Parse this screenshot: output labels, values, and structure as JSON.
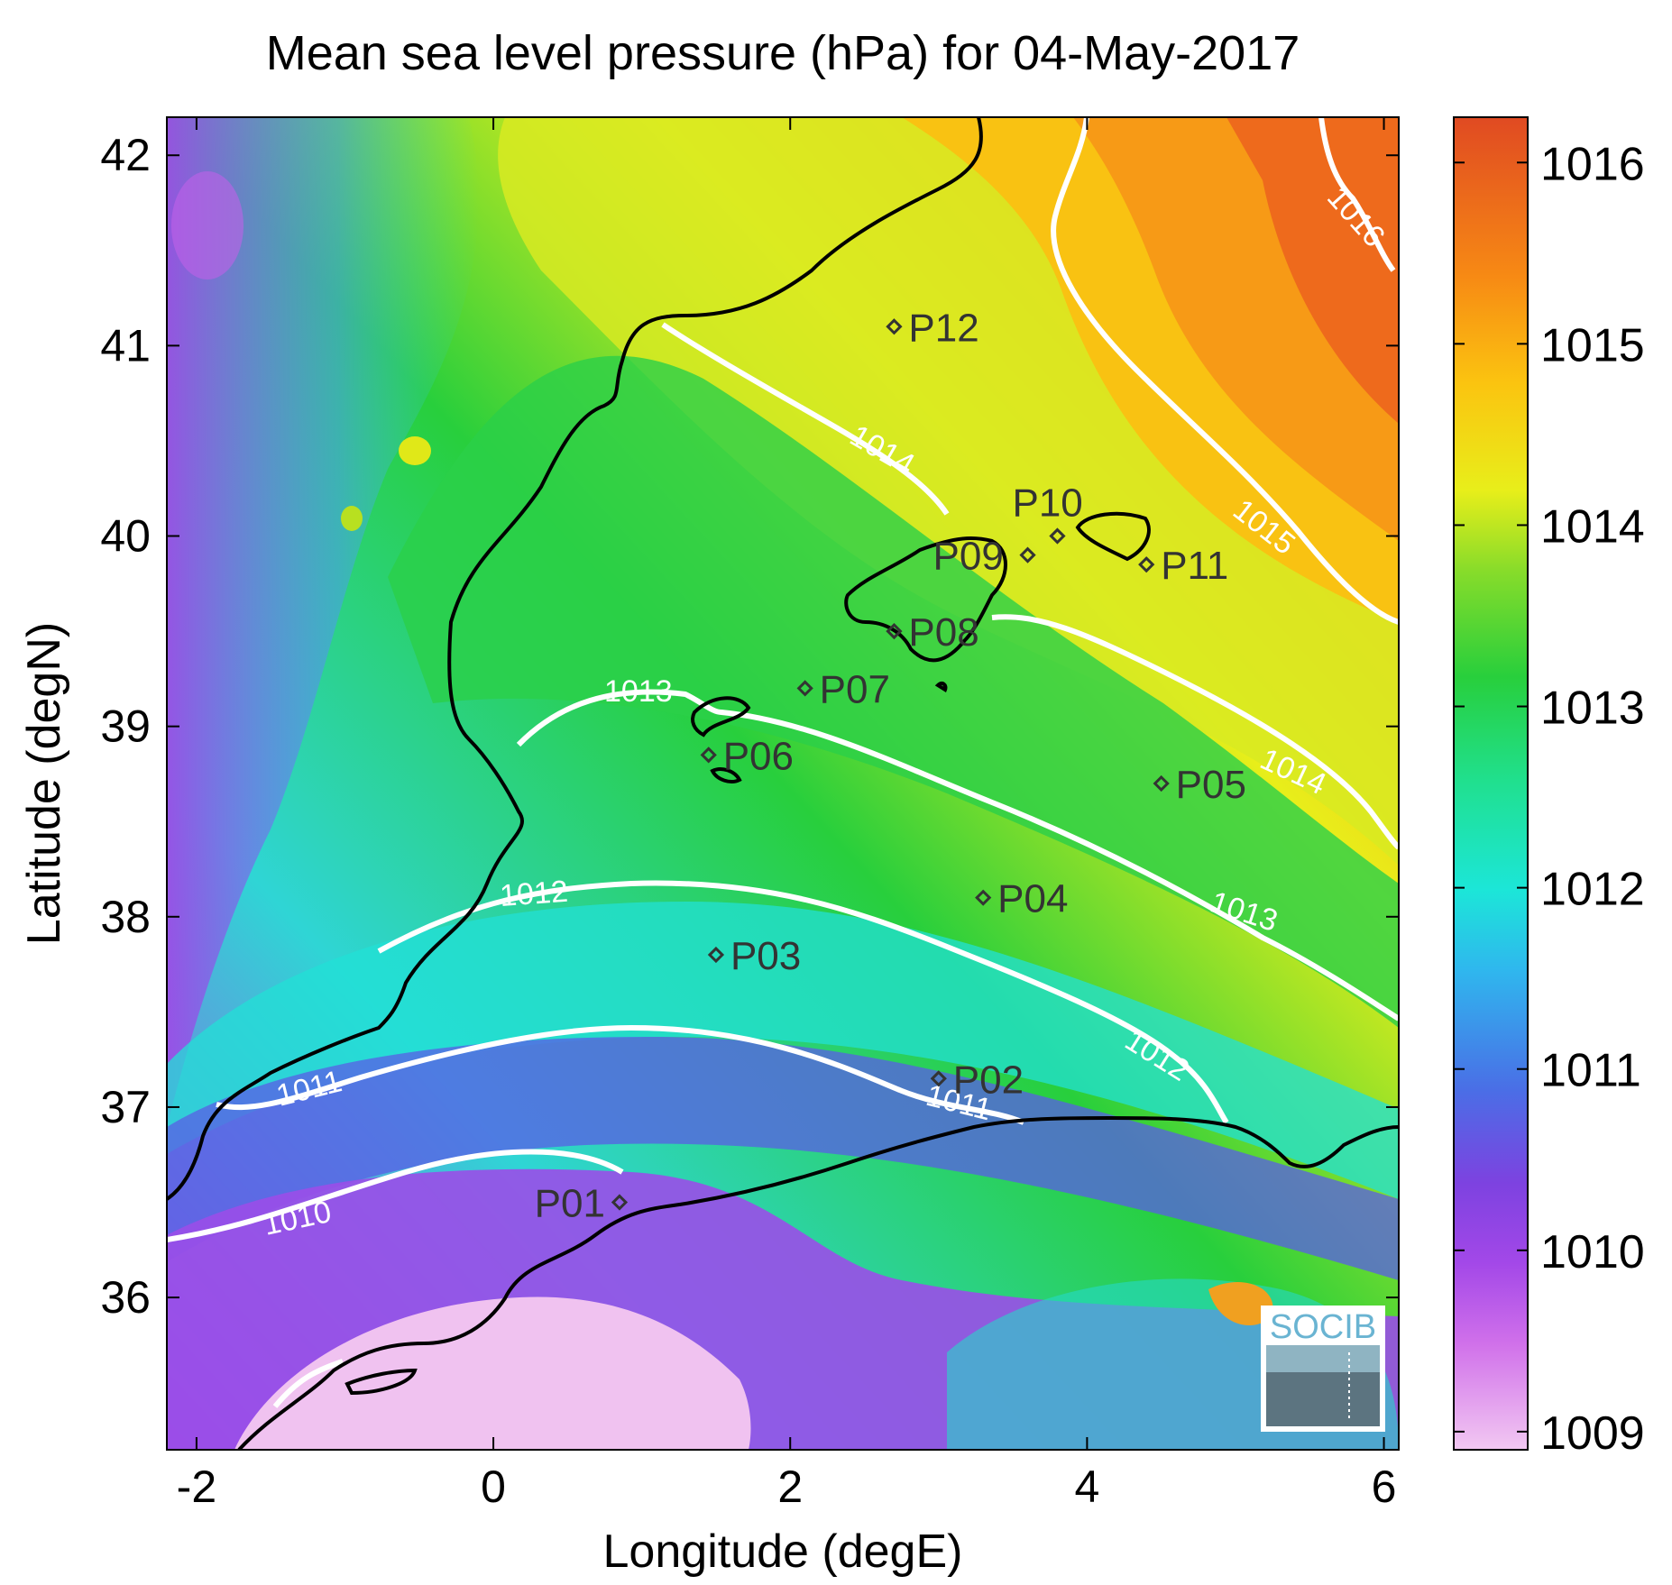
{
  "title": "Mean sea level pressure (hPa) for 04-May-2017",
  "xlabel": "Longitude (degE)",
  "ylabel": "Latitude (degN)",
  "logo_text": "SOCIB",
  "map_data": {
    "type": "heatmap",
    "xlim": [
      -2.2,
      6.1
    ],
    "ylim": [
      35.2,
      42.2
    ],
    "x_ticks": [
      -2,
      0,
      2,
      4,
      6
    ],
    "y_ticks": [
      36,
      37,
      38,
      39,
      40,
      41,
      42
    ],
    "colorbar": {
      "ticks": [
        1009,
        1010,
        1011,
        1012,
        1013,
        1014,
        1015,
        1016
      ],
      "range": [
        1008.9,
        1016.25
      ]
    },
    "contour_labels": [
      {
        "text": "1010",
        "level": 1010
      },
      {
        "text": "1011",
        "level": 1011
      },
      {
        "text": "1011",
        "level": 1011
      },
      {
        "text": "1012",
        "level": 1012
      },
      {
        "text": "1012",
        "level": 1012
      },
      {
        "text": "1013",
        "level": 1013
      },
      {
        "text": "1013",
        "level": 1013
      },
      {
        "text": "1014",
        "level": 1014
      },
      {
        "text": "1014",
        "level": 1014
      },
      {
        "text": "1015",
        "level": 1015
      },
      {
        "text": "1016",
        "level": 1016
      }
    ],
    "stations": [
      {
        "name": "P01",
        "lon": 0.85,
        "lat": 36.5
      },
      {
        "name": "P02",
        "lon": 3.0,
        "lat": 37.15
      },
      {
        "name": "P03",
        "lon": 1.5,
        "lat": 37.8
      },
      {
        "name": "P04",
        "lon": 3.3,
        "lat": 38.1
      },
      {
        "name": "P05",
        "lon": 4.5,
        "lat": 38.7
      },
      {
        "name": "P06",
        "lon": 1.45,
        "lat": 38.85
      },
      {
        "name": "P07",
        "lon": 2.1,
        "lat": 39.2
      },
      {
        "name": "P08",
        "lon": 2.7,
        "lat": 39.5
      },
      {
        "name": "P09",
        "lon": 3.6,
        "lat": 39.9
      },
      {
        "name": "P10",
        "lon": 3.8,
        "lat": 40.0
      },
      {
        "name": "P11",
        "lon": 4.4,
        "lat": 39.85
      },
      {
        "name": "P12",
        "lon": 2.7,
        "lat": 41.1
      }
    ]
  }
}
